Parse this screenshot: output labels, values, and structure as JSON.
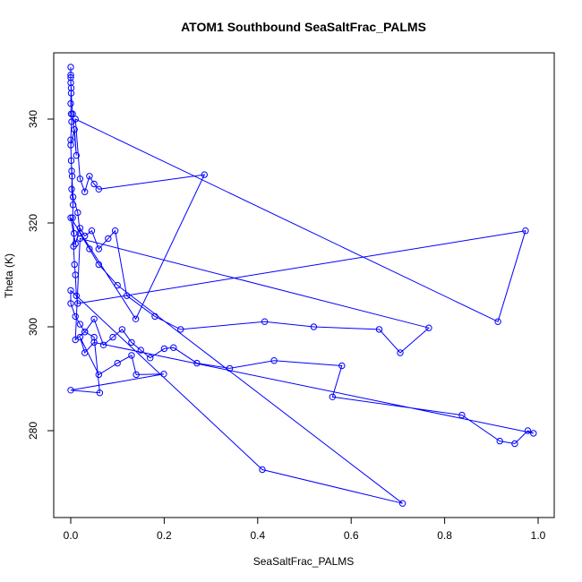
{
  "chart_data": {
    "type": "line",
    "title": "ATOM1 Southbound SeaSaltFrac_PALMS",
    "xlabel": "SeaSaltFrac_PALMS",
    "ylabel": "Theta (K)",
    "xlim": [
      0,
      1
    ],
    "ylim": [
      265,
      350
    ],
    "xticks": [
      "0.0",
      "0.2",
      "0.4",
      "0.6",
      "0.8",
      "1.0"
    ],
    "yticks": [
      "280",
      "300",
      "320",
      "340"
    ],
    "xtick_values": [
      0,
      0.2,
      0.4,
      0.6,
      0.8,
      1.0
    ],
    "ytick_values": [
      280,
      300,
      320,
      340
    ],
    "grid": false,
    "color": "#0000ff",
    "series": [
      {
        "x": [
          0.0,
          0.0,
          0.0,
          0.001,
          0.0,
          0.001,
          0.002,
          0.0,
          0.001,
          0.003,
          0.002,
          0.005,
          0.004,
          0.007,
          0.006,
          0.008,
          0.01,
          0.012,
          0.015,
          0.973,
          0.914,
          0.01,
          0.02,
          0.03,
          0.04,
          0.05,
          0.06,
          0.286,
          0.139,
          0.0,
          0.01,
          0.02,
          0.03,
          0.045,
          0.06,
          0.08,
          0.095,
          0.12,
          0.18,
          0.235,
          0.415,
          0.52,
          0.66,
          0.705,
          0.766,
          0.02,
          0.01,
          0.03,
          0.05,
          0.07,
          0.09,
          0.11,
          0.13,
          0.15,
          0.17,
          0.2,
          0.22,
          0.27,
          0.34,
          0.435,
          0.58,
          0.56,
          0.837,
          0.918,
          0.95,
          0.978,
          0.99,
          0.05,
          0.03,
          0.02,
          0.06,
          0.1,
          0.13,
          0.14,
          0.199,
          0.0,
          0.062,
          0.05,
          0.03,
          0.02,
          0.01,
          0.0,
          0.0,
          0.41,
          0.71,
          0.1,
          0.06,
          0.04,
          0.02,
          0.015,
          0.005,
          0.002,
          0.0,
          0.008,
          0.012,
          0.004,
          0.001,
          0.0
        ],
        "y": [
          350.0,
          348.5,
          347.0,
          346.0,
          343.0,
          341.0,
          339.5,
          336.0,
          332.0,
          329.0,
          326.5,
          323.5,
          321.0,
          318.0,
          315.5,
          312.0,
          310.0,
          306.0,
          304.5,
          318.5,
          301.0,
          340.0,
          328.5,
          326.0,
          329.0,
          327.5,
          326.5,
          329.3,
          301.5,
          321.0,
          316.0,
          319.0,
          317.5,
          318.5,
          315.0,
          317.0,
          318.5,
          306.0,
          302.0,
          299.5,
          301.0,
          300.0,
          299.5,
          295.0,
          299.8,
          317.0,
          297.5,
          299.0,
          301.5,
          296.5,
          298.0,
          299.5,
          297.0,
          295.5,
          294.0,
          295.8,
          296.0,
          293.0,
          292.0,
          293.5,
          292.5,
          286.5,
          283.0,
          278.0,
          277.5,
          280.0,
          279.5,
          297.0,
          295.0,
          298.0,
          290.8,
          293.0,
          294.5,
          290.8,
          290.9,
          287.8,
          287.3,
          298.0,
          299.0,
          300.5,
          302.0,
          304.5,
          307.0,
          272.5,
          266.0,
          308.0,
          312.0,
          315.0,
          318.0,
          322.0,
          325.0,
          330.0,
          335.0,
          338.0,
          333.0,
          341.0,
          345.0,
          348.0
        ]
      }
    ]
  }
}
